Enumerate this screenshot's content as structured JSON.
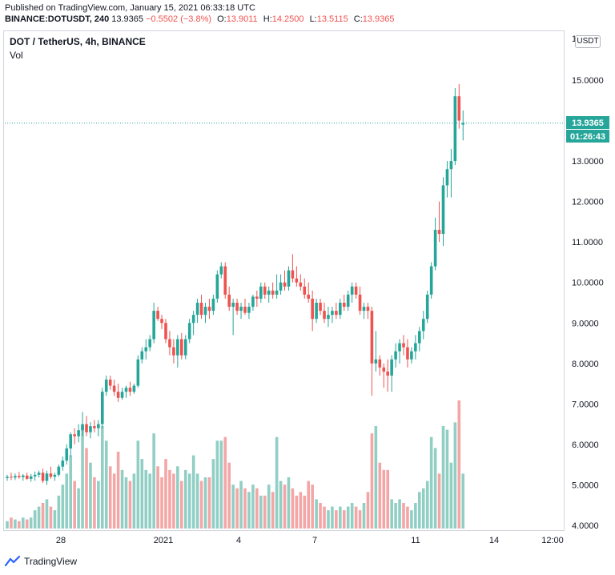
{
  "header": {
    "published": "Published on TradingView.com, January 15, 2021 06:33:18 UTC",
    "symbol": "BINANCE:DOTUSDT, 240",
    "last": "13.9365",
    "change": "−0.5502 (−3.8%)",
    "o_label": "O:",
    "o": "13.9011",
    "h_label": "H:",
    "h": "14.2500",
    "l_label": "L:",
    "l": "13.5115",
    "c_label": "C:",
    "c": "13.9365"
  },
  "legend": {
    "title": "DOT / TetherUS, 4h, BINANCE",
    "vol": "Vol"
  },
  "currency_button": "USDT",
  "price_label": "13.9365",
  "countdown_label": "01:26:43",
  "footer": {
    "brand": "TradingView"
  },
  "colors": {
    "up": "#26a69a",
    "down": "#ef5350",
    "up_vol": "#91cfc5",
    "down_vol": "#f4a6a6",
    "last_line": "#26a69a"
  },
  "chart_data": {
    "type": "candlestick",
    "y_axis_ticks": [
      "15.0000",
      "14.0000",
      "13.0000",
      "12.0000",
      "11.0000",
      "10.0000",
      "9.0000",
      "8.0000",
      "7.0000",
      "6.0000",
      "5.0000",
      "4.0000"
    ],
    "y_axis_partial_top": "1",
    "ylim": [
      4.0,
      16.0
    ],
    "x_axis_ticks": [
      "28",
      "2021",
      "4",
      "7",
      "11",
      "14",
      "12:00"
    ],
    "last_price": 13.9365,
    "candles": [
      {
        "o": 5.17,
        "h": 5.25,
        "l": 5.1,
        "c": 5.2,
        "v": 0.2
      },
      {
        "o": 5.2,
        "h": 5.3,
        "l": 5.12,
        "c": 5.18,
        "v": 0.3
      },
      {
        "o": 5.18,
        "h": 5.28,
        "l": 5.12,
        "c": 5.22,
        "v": 0.25
      },
      {
        "o": 5.22,
        "h": 5.32,
        "l": 5.15,
        "c": 5.19,
        "v": 0.2
      },
      {
        "o": 5.19,
        "h": 5.27,
        "l": 5.1,
        "c": 5.23,
        "v": 0.3
      },
      {
        "o": 5.23,
        "h": 5.3,
        "l": 5.12,
        "c": 5.15,
        "v": 0.25
      },
      {
        "o": 5.15,
        "h": 5.27,
        "l": 5.08,
        "c": 5.21,
        "v": 0.3
      },
      {
        "o": 5.21,
        "h": 5.33,
        "l": 5.1,
        "c": 5.25,
        "v": 0.5
      },
      {
        "o": 5.25,
        "h": 5.35,
        "l": 5.18,
        "c": 5.3,
        "v": 0.6
      },
      {
        "o": 5.3,
        "h": 5.4,
        "l": 5.05,
        "c": 5.1,
        "v": 0.7
      },
      {
        "o": 5.1,
        "h": 5.35,
        "l": 5.0,
        "c": 5.28,
        "v": 0.8
      },
      {
        "o": 5.28,
        "h": 5.45,
        "l": 5.15,
        "c": 5.2,
        "v": 0.6
      },
      {
        "o": 5.2,
        "h": 5.3,
        "l": 5.1,
        "c": 5.25,
        "v": 0.5
      },
      {
        "o": 5.25,
        "h": 5.5,
        "l": 5.2,
        "c": 5.45,
        "v": 0.9
      },
      {
        "o": 5.45,
        "h": 5.7,
        "l": 5.35,
        "c": 5.6,
        "v": 1.2
      },
      {
        "o": 5.6,
        "h": 6.0,
        "l": 5.5,
        "c": 5.9,
        "v": 1.5
      },
      {
        "o": 5.9,
        "h": 6.3,
        "l": 5.7,
        "c": 6.25,
        "v": 2.0
      },
      {
        "o": 6.25,
        "h": 6.4,
        "l": 6.0,
        "c": 6.2,
        "v": 1.3
      },
      {
        "o": 6.2,
        "h": 6.5,
        "l": 6.05,
        "c": 6.35,
        "v": 1.1
      },
      {
        "o": 6.35,
        "h": 6.8,
        "l": 6.2,
        "c": 6.5,
        "v": 2.8
      },
      {
        "o": 6.5,
        "h": 6.7,
        "l": 6.2,
        "c": 6.3,
        "v": 2.2
      },
      {
        "o": 6.3,
        "h": 6.55,
        "l": 6.15,
        "c": 6.45,
        "v": 1.8
      },
      {
        "o": 6.45,
        "h": 6.6,
        "l": 6.3,
        "c": 6.4,
        "v": 1.4
      },
      {
        "o": 6.4,
        "h": 6.6,
        "l": 6.2,
        "c": 6.5,
        "v": 1.3
      },
      {
        "o": 6.5,
        "h": 7.4,
        "l": 6.4,
        "c": 7.3,
        "v": 2.8
      },
      {
        "o": 7.3,
        "h": 7.7,
        "l": 7.2,
        "c": 7.6,
        "v": 2.4
      },
      {
        "o": 7.6,
        "h": 7.7,
        "l": 7.35,
        "c": 7.45,
        "v": 1.7
      },
      {
        "o": 7.45,
        "h": 7.6,
        "l": 7.2,
        "c": 7.3,
        "v": 1.5
      },
      {
        "o": 7.3,
        "h": 7.5,
        "l": 7.05,
        "c": 7.15,
        "v": 2.1
      },
      {
        "o": 7.15,
        "h": 7.4,
        "l": 7.1,
        "c": 7.3,
        "v": 1.6
      },
      {
        "o": 7.3,
        "h": 7.45,
        "l": 7.15,
        "c": 7.4,
        "v": 1.4
      },
      {
        "o": 7.4,
        "h": 7.55,
        "l": 7.2,
        "c": 7.3,
        "v": 1.3
      },
      {
        "o": 7.3,
        "h": 7.5,
        "l": 7.25,
        "c": 7.45,
        "v": 1.5
      },
      {
        "o": 7.45,
        "h": 8.2,
        "l": 7.4,
        "c": 8.1,
        "v": 2.4
      },
      {
        "o": 8.1,
        "h": 8.4,
        "l": 8.0,
        "c": 8.3,
        "v": 1.9
      },
      {
        "o": 8.3,
        "h": 8.6,
        "l": 8.1,
        "c": 8.4,
        "v": 1.6
      },
      {
        "o": 8.4,
        "h": 8.7,
        "l": 8.3,
        "c": 8.6,
        "v": 1.5
      },
      {
        "o": 8.6,
        "h": 9.5,
        "l": 8.5,
        "c": 9.3,
        "v": 2.6
      },
      {
        "o": 9.3,
        "h": 9.4,
        "l": 9.05,
        "c": 9.1,
        "v": 1.7
      },
      {
        "o": 9.1,
        "h": 9.2,
        "l": 8.85,
        "c": 9.0,
        "v": 1.4
      },
      {
        "o": 9.0,
        "h": 9.1,
        "l": 8.5,
        "c": 8.6,
        "v": 1.9
      },
      {
        "o": 8.6,
        "h": 8.8,
        "l": 8.2,
        "c": 8.4,
        "v": 1.6
      },
      {
        "o": 8.4,
        "h": 8.6,
        "l": 8.0,
        "c": 8.2,
        "v": 1.5
      },
      {
        "o": 8.2,
        "h": 8.7,
        "l": 7.9,
        "c": 8.6,
        "v": 1.7
      },
      {
        "o": 8.6,
        "h": 8.75,
        "l": 8.1,
        "c": 8.2,
        "v": 1.3
      },
      {
        "o": 8.2,
        "h": 8.7,
        "l": 8.1,
        "c": 8.6,
        "v": 1.6
      },
      {
        "o": 8.6,
        "h": 9.1,
        "l": 8.5,
        "c": 9.0,
        "v": 1.5
      },
      {
        "o": 9.0,
        "h": 9.3,
        "l": 8.7,
        "c": 9.2,
        "v": 2.0
      },
      {
        "o": 9.2,
        "h": 9.6,
        "l": 9.0,
        "c": 9.5,
        "v": 1.5
      },
      {
        "o": 9.5,
        "h": 9.7,
        "l": 9.1,
        "c": 9.2,
        "v": 1.3
      },
      {
        "o": 9.2,
        "h": 9.5,
        "l": 9.0,
        "c": 9.4,
        "v": 1.4
      },
      {
        "o": 9.4,
        "h": 9.6,
        "l": 9.1,
        "c": 9.3,
        "v": 1.4
      },
      {
        "o": 9.3,
        "h": 9.7,
        "l": 9.2,
        "c": 9.6,
        "v": 1.9
      },
      {
        "o": 9.6,
        "h": 10.3,
        "l": 9.5,
        "c": 10.2,
        "v": 2.4
      },
      {
        "o": 10.2,
        "h": 10.5,
        "l": 10.1,
        "c": 10.4,
        "v": 2.4
      },
      {
        "o": 10.4,
        "h": 10.5,
        "l": 9.6,
        "c": 9.7,
        "v": 2.5
      },
      {
        "o": 9.7,
        "h": 9.9,
        "l": 9.3,
        "c": 9.4,
        "v": 1.8
      },
      {
        "o": 9.4,
        "h": 9.6,
        "l": 8.7,
        "c": 9.5,
        "v": 1.2
      },
      {
        "o": 9.5,
        "h": 9.6,
        "l": 9.2,
        "c": 9.3,
        "v": 1.1
      },
      {
        "o": 9.3,
        "h": 9.5,
        "l": 9.1,
        "c": 9.4,
        "v": 1.3
      },
      {
        "o": 9.4,
        "h": 9.6,
        "l": 9.2,
        "c": 9.25,
        "v": 1.1
      },
      {
        "o": 9.25,
        "h": 9.5,
        "l": 9.1,
        "c": 9.4,
        "v": 1.0
      },
      {
        "o": 9.4,
        "h": 9.7,
        "l": 9.3,
        "c": 9.65,
        "v": 1.2
      },
      {
        "o": 9.65,
        "h": 9.8,
        "l": 9.4,
        "c": 9.6,
        "v": 1.1
      },
      {
        "o": 9.6,
        "h": 10.0,
        "l": 9.5,
        "c": 9.9,
        "v": 0.9
      },
      {
        "o": 9.9,
        "h": 10.0,
        "l": 9.6,
        "c": 9.7,
        "v": 0.9
      },
      {
        "o": 9.7,
        "h": 9.9,
        "l": 9.5,
        "c": 9.8,
        "v": 1.2
      },
      {
        "o": 9.8,
        "h": 10.0,
        "l": 9.6,
        "c": 9.7,
        "v": 1.0
      },
      {
        "o": 9.7,
        "h": 10.2,
        "l": 9.6,
        "c": 9.8,
        "v": 2.5
      },
      {
        "o": 9.8,
        "h": 10.2,
        "l": 9.7,
        "c": 10.0,
        "v": 1.3
      },
      {
        "o": 10.0,
        "h": 10.3,
        "l": 9.8,
        "c": 9.9,
        "v": 1.2
      },
      {
        "o": 9.9,
        "h": 10.4,
        "l": 9.8,
        "c": 10.3,
        "v": 1.4
      },
      {
        "o": 10.3,
        "h": 10.7,
        "l": 10.0,
        "c": 10.1,
        "v": 1.1
      },
      {
        "o": 10.1,
        "h": 10.4,
        "l": 9.9,
        "c": 10.0,
        "v": 0.9
      },
      {
        "o": 10.0,
        "h": 10.2,
        "l": 9.8,
        "c": 9.9,
        "v": 1.0
      },
      {
        "o": 9.9,
        "h": 10.1,
        "l": 9.6,
        "c": 9.7,
        "v": 0.9
      },
      {
        "o": 9.7,
        "h": 10.0,
        "l": 9.5,
        "c": 9.6,
        "v": 1.3
      },
      {
        "o": 9.6,
        "h": 9.8,
        "l": 8.8,
        "c": 9.1,
        "v": 1.2
      },
      {
        "o": 9.1,
        "h": 9.6,
        "l": 9.0,
        "c": 9.5,
        "v": 0.8
      },
      {
        "o": 9.5,
        "h": 9.6,
        "l": 9.2,
        "c": 9.3,
        "v": 0.7
      },
      {
        "o": 9.3,
        "h": 9.5,
        "l": 9.0,
        "c": 9.1,
        "v": 0.6
      },
      {
        "o": 9.1,
        "h": 9.4,
        "l": 8.9,
        "c": 9.2,
        "v": 0.5
      },
      {
        "o": 9.2,
        "h": 9.4,
        "l": 9.0,
        "c": 9.3,
        "v": 0.6
      },
      {
        "o": 9.3,
        "h": 9.5,
        "l": 9.1,
        "c": 9.2,
        "v": 0.5
      },
      {
        "o": 9.2,
        "h": 9.6,
        "l": 9.1,
        "c": 9.5,
        "v": 0.6
      },
      {
        "o": 9.5,
        "h": 9.7,
        "l": 9.3,
        "c": 9.4,
        "v": 0.5
      },
      {
        "o": 9.4,
        "h": 9.8,
        "l": 9.3,
        "c": 9.7,
        "v": 0.6
      },
      {
        "o": 9.7,
        "h": 10.0,
        "l": 9.5,
        "c": 9.9,
        "v": 0.7
      },
      {
        "o": 9.9,
        "h": 10.0,
        "l": 9.6,
        "c": 9.7,
        "v": 0.6
      },
      {
        "o": 9.7,
        "h": 9.9,
        "l": 9.2,
        "c": 9.3,
        "v": 0.5
      },
      {
        "o": 9.3,
        "h": 9.5,
        "l": 9.1,
        "c": 9.4,
        "v": 0.7
      },
      {
        "o": 9.4,
        "h": 9.5,
        "l": 9.1,
        "c": 9.3,
        "v": 1.0
      },
      {
        "o": 9.3,
        "h": 9.4,
        "l": 7.2,
        "c": 8.0,
        "v": 2.6
      },
      {
        "o": 8.0,
        "h": 8.8,
        "l": 7.8,
        "c": 8.1,
        "v": 2.8
      },
      {
        "o": 8.1,
        "h": 8.2,
        "l": 7.7,
        "c": 7.9,
        "v": 1.8
      },
      {
        "o": 7.9,
        "h": 8.0,
        "l": 7.4,
        "c": 7.8,
        "v": 1.6
      },
      {
        "o": 7.8,
        "h": 8.1,
        "l": 7.3,
        "c": 7.7,
        "v": 1.6
      },
      {
        "o": 7.7,
        "h": 8.2,
        "l": 7.3,
        "c": 8.1,
        "v": 0.8
      },
      {
        "o": 8.1,
        "h": 8.5,
        "l": 7.9,
        "c": 8.3,
        "v": 0.7
      },
      {
        "o": 8.3,
        "h": 8.6,
        "l": 8.0,
        "c": 8.5,
        "v": 0.8
      },
      {
        "o": 8.5,
        "h": 8.7,
        "l": 8.2,
        "c": 8.4,
        "v": 0.7
      },
      {
        "o": 8.4,
        "h": 8.6,
        "l": 7.9,
        "c": 8.1,
        "v": 0.6
      },
      {
        "o": 8.1,
        "h": 8.4,
        "l": 8.0,
        "c": 8.3,
        "v": 0.5
      },
      {
        "o": 8.3,
        "h": 8.7,
        "l": 8.1,
        "c": 8.5,
        "v": 0.7
      },
      {
        "o": 8.5,
        "h": 8.9,
        "l": 8.3,
        "c": 8.8,
        "v": 1.0
      },
      {
        "o": 8.8,
        "h": 9.3,
        "l": 8.6,
        "c": 9.1,
        "v": 1.1
      },
      {
        "o": 9.1,
        "h": 9.8,
        "l": 9.0,
        "c": 9.7,
        "v": 1.3
      },
      {
        "o": 9.7,
        "h": 10.5,
        "l": 9.6,
        "c": 10.4,
        "v": 2.5
      },
      {
        "o": 10.4,
        "h": 11.6,
        "l": 10.3,
        "c": 11.3,
        "v": 2.2
      },
      {
        "o": 11.3,
        "h": 12.0,
        "l": 11.0,
        "c": 11.2,
        "v": 1.5
      },
      {
        "o": 11.2,
        "h": 12.6,
        "l": 10.9,
        "c": 12.4,
        "v": 2.8
      },
      {
        "o": 12.4,
        "h": 13.0,
        "l": 12.1,
        "c": 12.8,
        "v": 2.7
      },
      {
        "o": 12.8,
        "h": 13.3,
        "l": 12.1,
        "c": 13.0,
        "v": 1.8
      },
      {
        "o": 13.0,
        "h": 14.8,
        "l": 12.9,
        "c": 14.6,
        "v": 2.9
      },
      {
        "o": 14.6,
        "h": 14.9,
        "l": 13.8,
        "c": 14.0,
        "v": 3.5
      },
      {
        "o": 13.9,
        "h": 14.25,
        "l": 13.51,
        "c": 13.94,
        "v": 1.5
      }
    ],
    "vol_max": 3.5
  }
}
